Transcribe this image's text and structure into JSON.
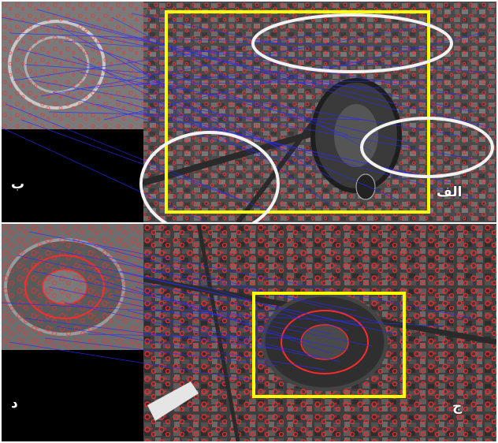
{
  "figure": {
    "panels": [
      {
        "id": "alef",
        "label": "الف"
      },
      {
        "id": "be",
        "label": "ب"
      },
      {
        "id": "jim",
        "label": "ج"
      },
      {
        "id": "dal",
        "label": "د"
      }
    ]
  },
  "colors": {
    "match_lines": "#2a2aff",
    "keypoints": "#ff2a2a",
    "highlight_box": "#ffff00",
    "highlight_ellipse": "#f2f2f2",
    "separator": "#ffffff",
    "background_black": "#000000"
  }
}
